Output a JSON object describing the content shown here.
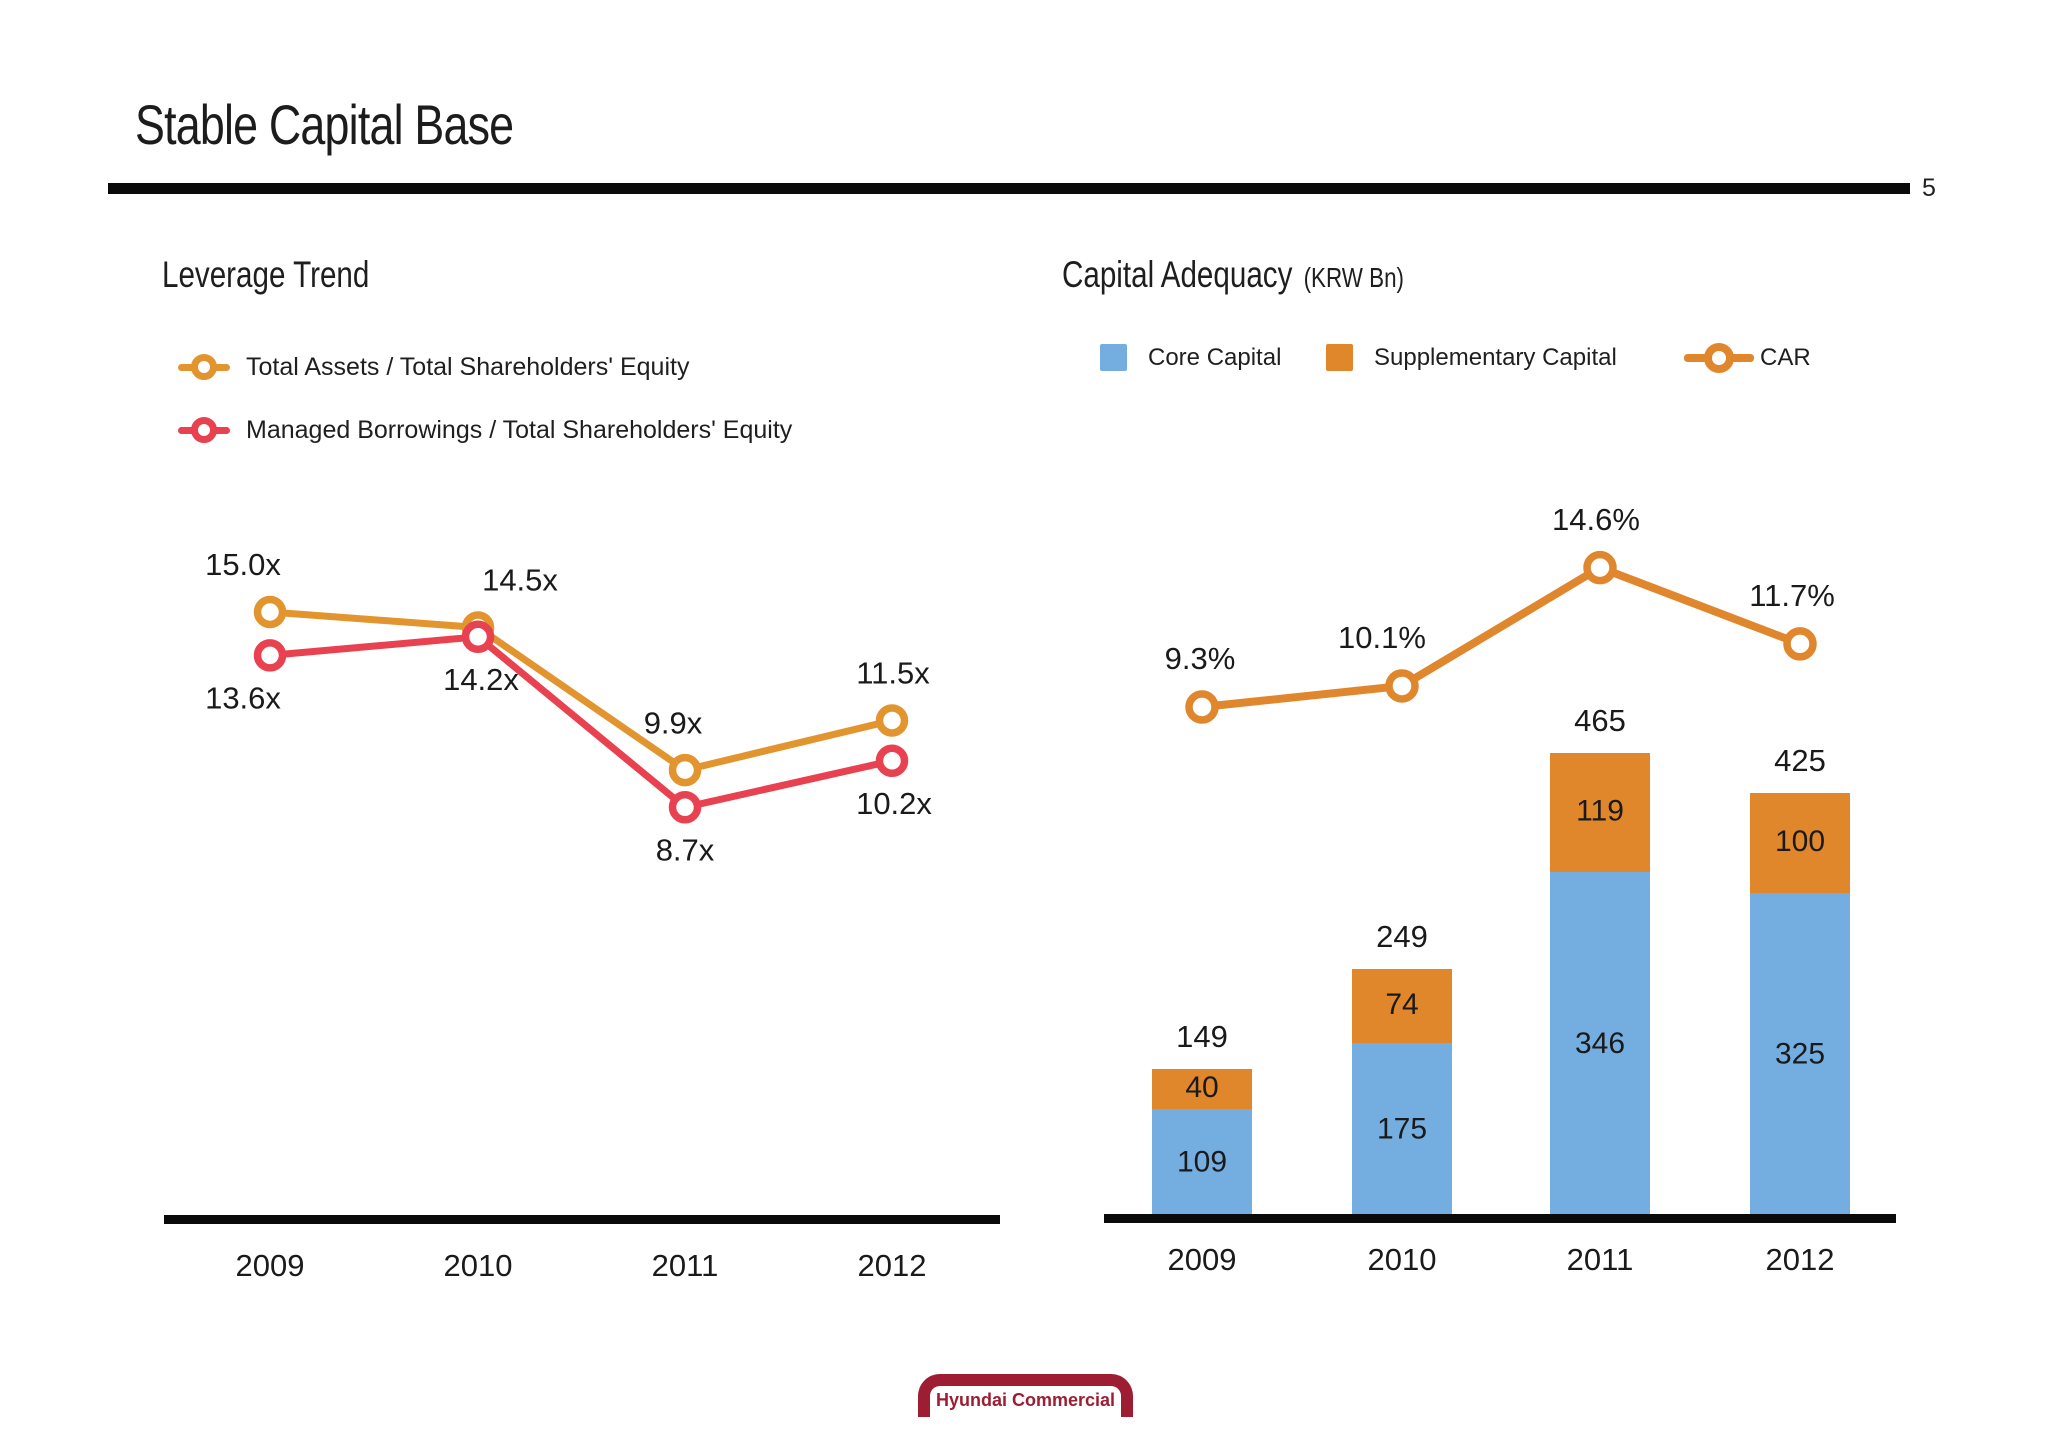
{
  "page": {
    "title": "Stable Capital Base",
    "page_number": "5",
    "footer_logo_text": "Hyundai Commercial"
  },
  "colors": {
    "leverage_orange": "#E2952F",
    "leverage_red": "#E8414F",
    "core_blue": "#74ADDF",
    "supplementary_orange": "#E0862B",
    "car_orange": "#E0872D",
    "logo_maroon": "#9D1D33",
    "axis_black": "#0A0A0A",
    "label_dark": "#1A1A1A"
  },
  "chart_data": [
    {
      "type": "line",
      "title": "Leverage Trend",
      "categories": [
        "2009",
        "2010",
        "2011",
        "2012"
      ],
      "series": [
        {
          "name": "Total Assets / Total Shareholders' Equity",
          "values": [
            15.0,
            14.5,
            9.9,
            11.5
          ],
          "point_labels": [
            "15.0x",
            "14.5x",
            "9.9x",
            "11.5x"
          ],
          "color": "#E2952F",
          "marker": "ring"
        },
        {
          "name": "Managed Borrowings / Total Shareholders' Equity",
          "values": [
            13.6,
            14.2,
            8.7,
            10.2
          ],
          "point_labels": [
            "13.6x",
            "14.2x",
            "8.7x",
            "10.2x"
          ],
          "color": "#E8414F",
          "marker": "ring"
        }
      ],
      "xlabel": "",
      "ylabel": "",
      "grid": false,
      "yaxis_visible": false,
      "legend_position": "top-left"
    },
    {
      "type": "bar",
      "subtype": "stacked-bars-with-line",
      "title": "Capital Adequacy",
      "subtitle": "(KRW Bn)",
      "categories": [
        "2009",
        "2010",
        "2011",
        "2012"
      ],
      "series": [
        {
          "name": "Core Capital",
          "type": "bar",
          "values": [
            109,
            175,
            346,
            325
          ],
          "color": "#74ADDF"
        },
        {
          "name": "Supplementary Capital",
          "type": "bar",
          "values": [
            40,
            74,
            119,
            100
          ],
          "color": "#E0862B"
        },
        {
          "name": "CAR",
          "type": "line",
          "values": [
            9.3,
            10.1,
            14.6,
            11.7
          ],
          "point_labels": [
            "9.3%",
            "10.1%",
            "14.6%",
            "11.7%"
          ],
          "color": "#E0872D",
          "marker": "ring"
        }
      ],
      "totals": [
        149,
        249,
        465,
        425
      ],
      "xlabel": "",
      "ylabel": "",
      "grid": false,
      "yaxis_visible": false,
      "legend_position": "top"
    }
  ]
}
